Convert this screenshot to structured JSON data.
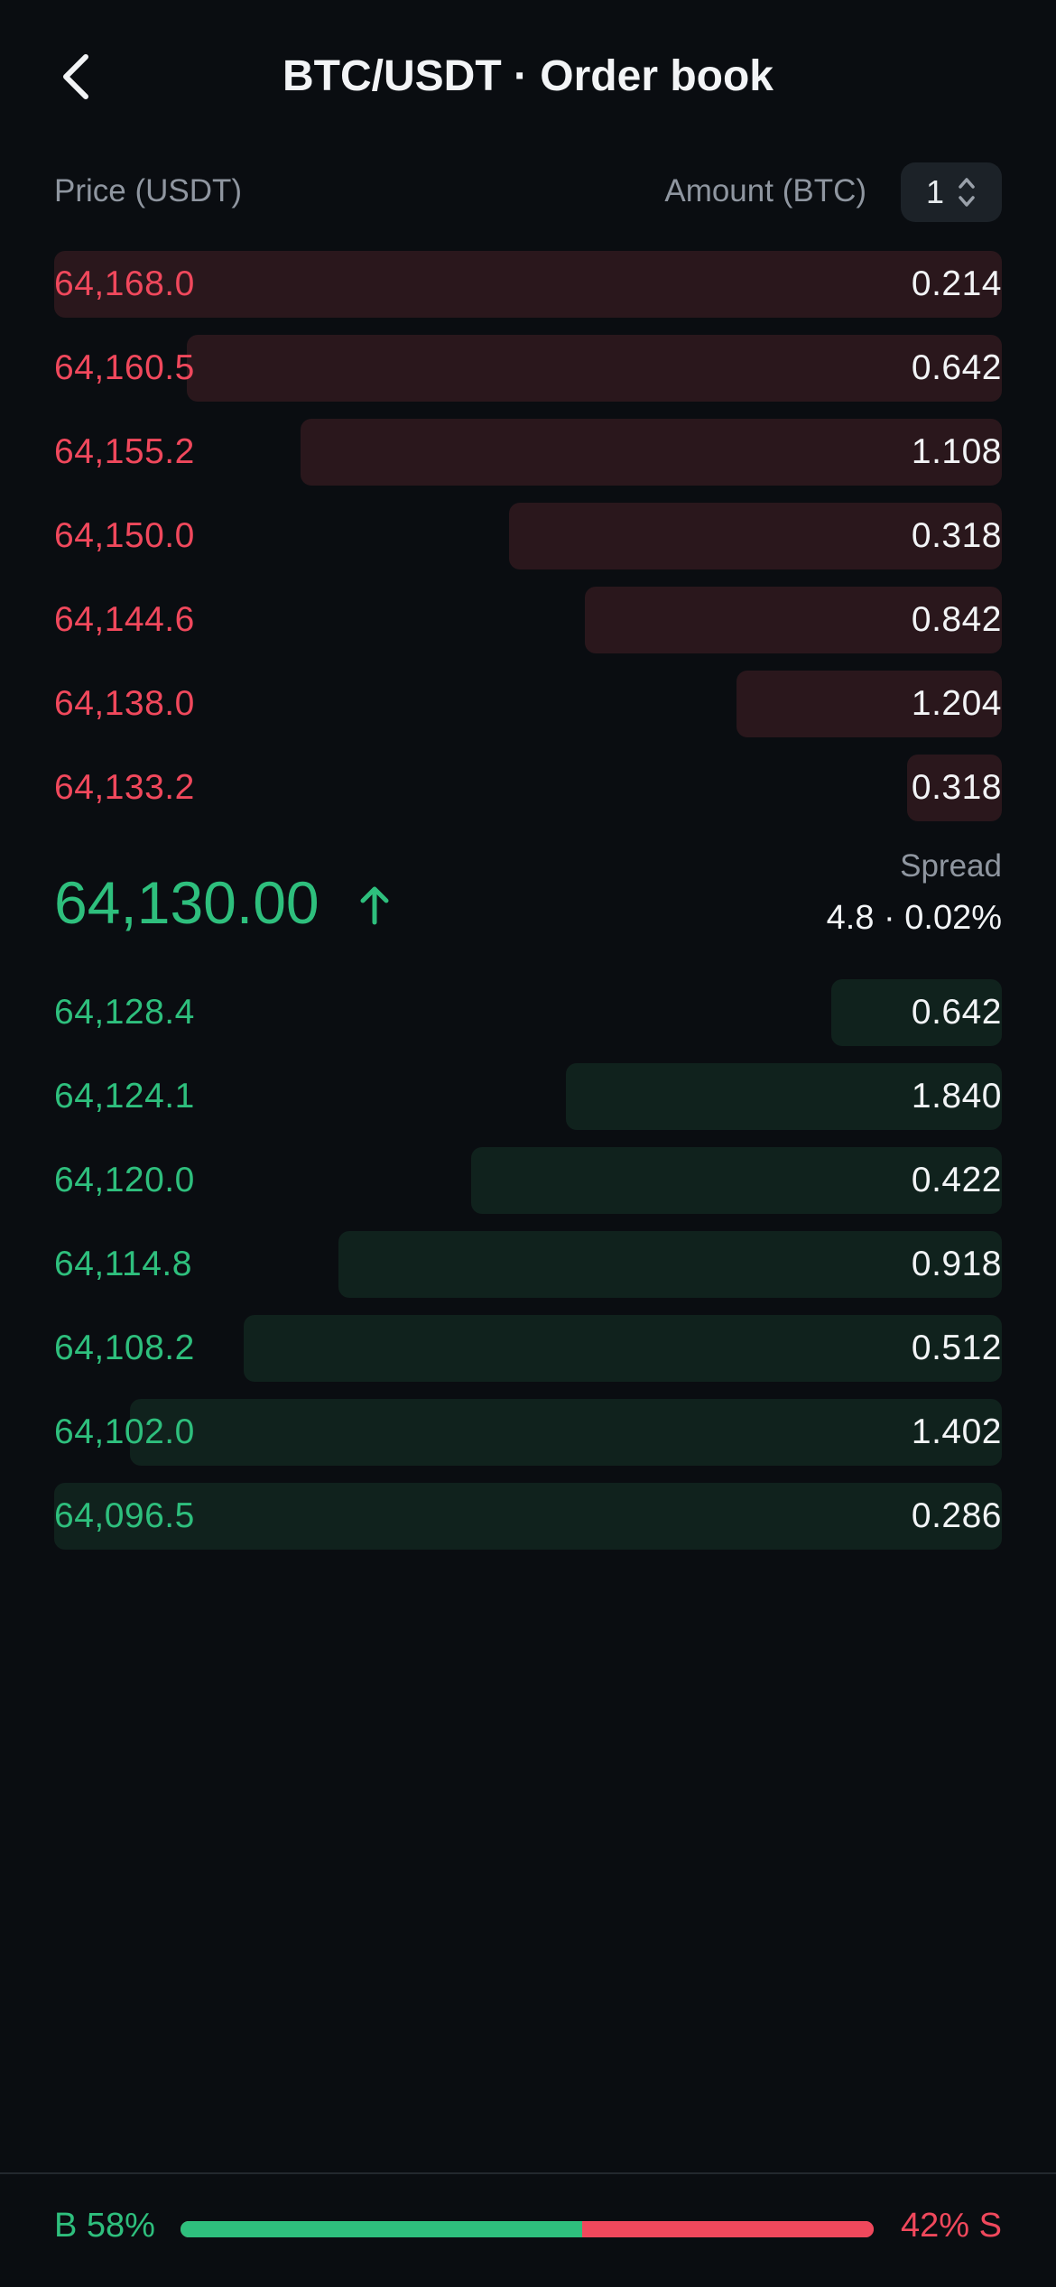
{
  "header": {
    "title": "BTC/USDT · Order book",
    "back_icon": "chevron-left-icon"
  },
  "columns": {
    "price": "Price (USDT)",
    "amount": "Amount (BTC)",
    "aggregation": "1"
  },
  "colors": {
    "ask": "#f0485c",
    "bid": "#2ebf7d",
    "background": "#0a0d11"
  },
  "asks": [
    {
      "price": "64,168.0",
      "amount": "0.214",
      "depth": 1.0
    },
    {
      "price": "64,160.5",
      "amount": "0.642",
      "depth": 0.86
    },
    {
      "price": "64,155.2",
      "amount": "1.108",
      "depth": 0.74
    },
    {
      "price": "64,150.0",
      "amount": "0.318",
      "depth": 0.52
    },
    {
      "price": "64,144.6",
      "amount": "0.842",
      "depth": 0.44
    },
    {
      "price": "64,138.0",
      "amount": "1.204",
      "depth": 0.28
    },
    {
      "price": "64,133.2",
      "amount": "0.318",
      "depth": 0.1
    }
  ],
  "mid": {
    "last_price": "64,130.00",
    "direction_icon": "arrow-up-icon",
    "spread_label": "Spread",
    "spread_value": "4.8 · 0.02%"
  },
  "bids": [
    {
      "price": "64,128.4",
      "amount": "0.642",
      "depth": 0.18
    },
    {
      "price": "64,124.1",
      "amount": "1.840",
      "depth": 0.46
    },
    {
      "price": "64,120.0",
      "amount": "0.422",
      "depth": 0.56
    },
    {
      "price": "64,114.8",
      "amount": "0.918",
      "depth": 0.7
    },
    {
      "price": "64,108.2",
      "amount": "0.512",
      "depth": 0.8
    },
    {
      "price": "64,102.0",
      "amount": "1.402",
      "depth": 0.92
    },
    {
      "price": "64,096.5",
      "amount": "0.286",
      "depth": 1.0
    }
  ],
  "ratio": {
    "buy_label": "B 58%",
    "sell_label": "42% S",
    "buy_fraction": 0.58
  }
}
